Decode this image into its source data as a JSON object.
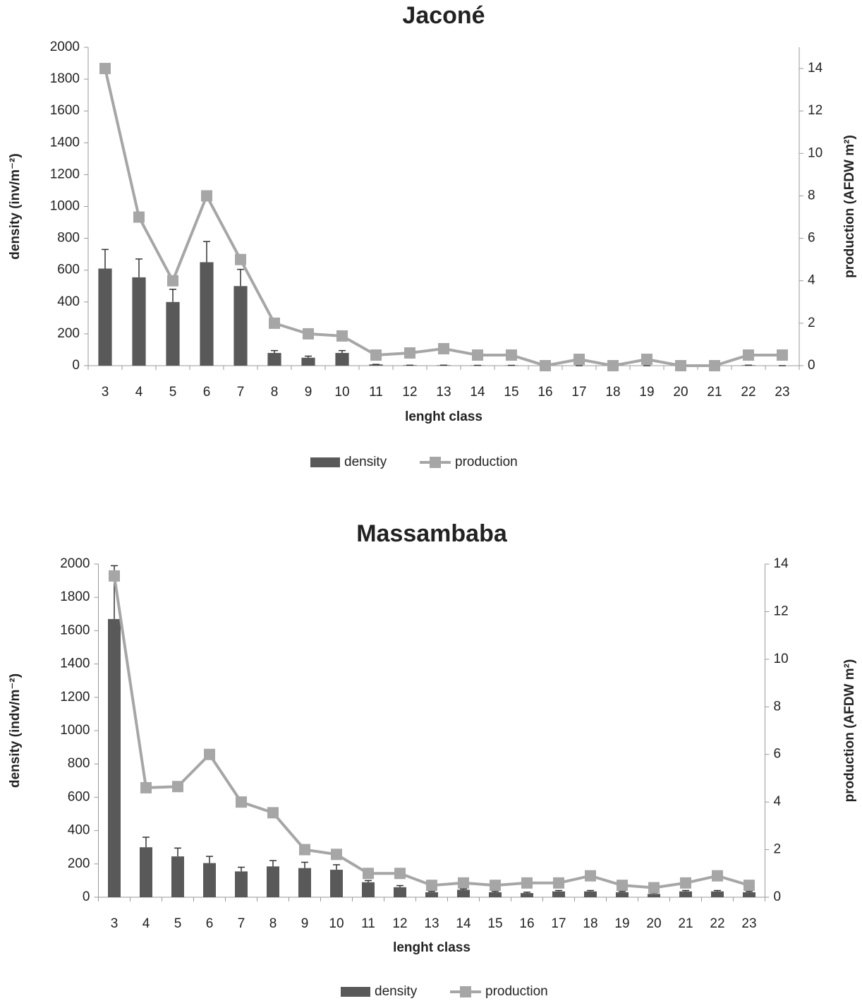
{
  "chart_data": [
    {
      "type": "bar",
      "title": "Jaconé",
      "x_label": "lenght class",
      "y_label": "density (inv/m⁻²)",
      "y2_label": "production (AFDW m²)",
      "categories": [
        "3",
        "4",
        "5",
        "6",
        "7",
        "8",
        "9",
        "10",
        "11",
        "12",
        "13",
        "14",
        "15",
        "16",
        "17",
        "18",
        "19",
        "20",
        "21",
        "22",
        "23"
      ],
      "series": [
        {
          "name": "density",
          "color": "#595959",
          "values": [
            610,
            555,
            400,
            650,
            500,
            80,
            50,
            80,
            8,
            3,
            3,
            2,
            2,
            0,
            0,
            0,
            0,
            0,
            0,
            3,
            0
          ],
          "errors": [
            120,
            115,
            80,
            130,
            105,
            15,
            10,
            15,
            0,
            0,
            0,
            0,
            0,
            0,
            0,
            0,
            0,
            0,
            0,
            0,
            0
          ]
        },
        {
          "name": "production",
          "color": "#a6a6a6",
          "axis": "y2",
          "values": [
            14,
            7,
            4,
            8,
            5,
            2,
            1.5,
            1.4,
            0.5,
            0.6,
            0.8,
            0.5,
            0.5,
            0,
            0.3,
            0,
            0.3,
            0,
            0,
            0.5,
            0.5
          ]
        }
      ],
      "ylim": [
        0,
        2000
      ],
      "yticks": [
        0,
        200,
        400,
        600,
        800,
        1000,
        1200,
        1400,
        1600,
        1800,
        2000
      ],
      "y2lim": [
        0,
        15
      ],
      "y2ticks": [
        0,
        2,
        4,
        6,
        8,
        10,
        12,
        14
      ],
      "legend": "bottom"
    },
    {
      "type": "bar",
      "title": "Massambaba",
      "x_label": "lenght class",
      "y_label": "density (indv/m⁻²)",
      "y2_label": "production (AFDW m²)",
      "categories": [
        "3",
        "4",
        "5",
        "6",
        "7",
        "8",
        "9",
        "10",
        "11",
        "12",
        "13",
        "14",
        "15",
        "16",
        "17",
        "18",
        "19",
        "20",
        "21",
        "22",
        "23"
      ],
      "series": [
        {
          "name": "density",
          "color": "#595959",
          "values": [
            1670,
            300,
            245,
            205,
            155,
            185,
            175,
            165,
            90,
            60,
            30,
            45,
            30,
            25,
            35,
            35,
            30,
            20,
            35,
            35,
            30
          ],
          "errors": [
            320,
            60,
            50,
            40,
            25,
            35,
            35,
            30,
            10,
            10,
            5,
            5,
            5,
            5,
            5,
            5,
            5,
            5,
            5,
            5,
            5
          ]
        },
        {
          "name": "production",
          "color": "#a6a6a6",
          "axis": "y2",
          "values": [
            13.5,
            4.6,
            4.65,
            6,
            4,
            3.55,
            2,
            1.8,
            1,
            1,
            0.5,
            0.6,
            0.5,
            0.6,
            0.6,
            0.9,
            0.5,
            0.4,
            0.6,
            0.9,
            0.5
          ]
        }
      ],
      "ylim": [
        0,
        2000
      ],
      "yticks": [
        0,
        200,
        400,
        600,
        800,
        1000,
        1200,
        1400,
        1600,
        1800,
        2000
      ],
      "y2lim": [
        0,
        14
      ],
      "y2ticks": [
        0,
        2,
        4,
        6,
        8,
        10,
        12,
        14
      ],
      "legend": "bottom"
    }
  ]
}
